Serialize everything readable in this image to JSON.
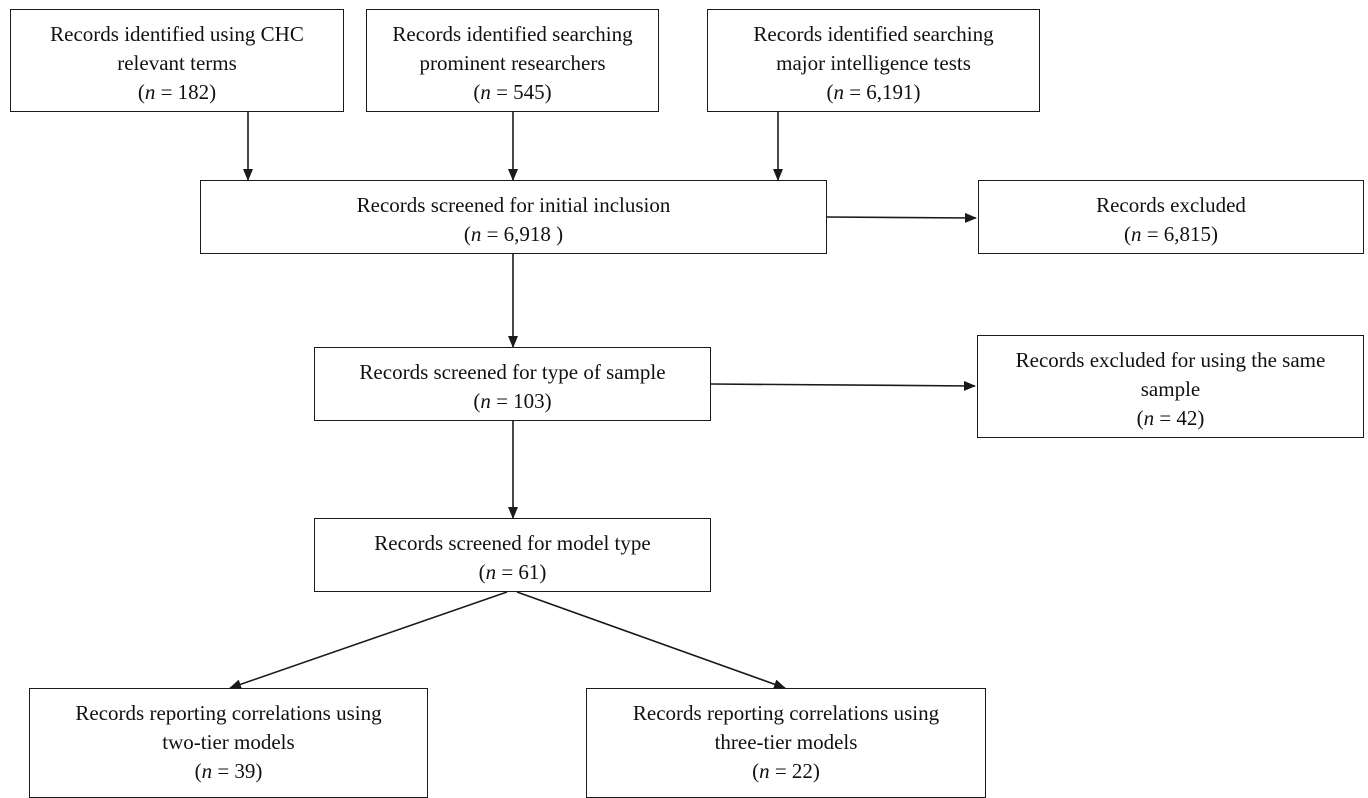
{
  "diagram": {
    "boxes": {
      "chc": {
        "line1": "Records identified using CHC",
        "line2": "relevant terms",
        "n_prefix": "(",
        "n_var": "n",
        "n_value": " = 182)"
      },
      "researchers": {
        "line1": "Records identified searching",
        "line2": "prominent researchers",
        "n_prefix": "(",
        "n_var": "n",
        "n_value": " = 545)"
      },
      "tests": {
        "line1": "Records identified searching",
        "line2": "major intelligence tests",
        "n_prefix": "(",
        "n_var": "n",
        "n_value": " = 6,191)"
      },
      "initial": {
        "line1": "Records screened for initial inclusion",
        "n_prefix": "(",
        "n_var": "n",
        "n_value": " = 6,918 )"
      },
      "excluded": {
        "line1": "Records excluded",
        "n_prefix": "(",
        "n_var": "n",
        "n_value": " = 6,815)"
      },
      "sample": {
        "line1": "Records screened for type of sample",
        "n_prefix": "(",
        "n_var": "n",
        "n_value": " = 103)"
      },
      "excluded_same": {
        "line1": "Records excluded for using the same",
        "line2": "sample",
        "n_prefix": "(",
        "n_var": "n",
        "n_value": " = 42)"
      },
      "model": {
        "line1": "Records screened for model type",
        "n_prefix": "(",
        "n_var": "n",
        "n_value": " = 61)"
      },
      "two_tier": {
        "line1": "Records reporting correlations using",
        "line2": "two-tier models",
        "n_prefix": "(",
        "n_var": "n",
        "n_value": " = 39)"
      },
      "three_tier": {
        "line1": "Records reporting correlations using",
        "line2": "three-tier models",
        "n_prefix": "(",
        "n_var": "n",
        "n_value": " = 22)"
      }
    },
    "colors": {
      "line": "#1a1a1a",
      "background": "#ffffff",
      "text": "#111111"
    }
  }
}
